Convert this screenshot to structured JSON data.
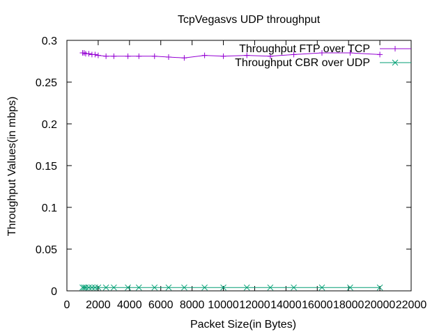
{
  "chart_data": {
    "type": "line",
    "title": "TcpVegasvs UDP throughput",
    "xlabel": "Packet Size(in Bytes)",
    "ylabel": "Throughput Values(in mbps)",
    "xlim": [
      0,
      22000
    ],
    "ylim": [
      0,
      0.3
    ],
    "xticks": [
      0,
      2000,
      4000,
      6000,
      8000,
      10000,
      12000,
      14000,
      16000,
      18000,
      20000,
      22000
    ],
    "yticks": [
      0,
      0.05,
      0.1,
      0.15,
      0.2,
      0.25,
      0.3
    ],
    "xtick_labels": [
      "0",
      "2000",
      "4000",
      "6000",
      "8000",
      "10000",
      "12000",
      "14000",
      "16000",
      "18000",
      "20000",
      "22000"
    ],
    "ytick_labels": [
      "0",
      "0.05",
      "0.1",
      "0.15",
      "0.2",
      "0.25",
      "0.3"
    ],
    "grid": false,
    "legend_position": "top-right",
    "series": [
      {
        "name": "Throughput FTP over TCP",
        "color": "#9400d3",
        "marker": "plus",
        "x": [
          1000,
          1100,
          1200,
          1400,
          1600,
          1800,
          2000,
          2500,
          3000,
          3900,
          4600,
          5600,
          6500,
          7500,
          8800,
          10000,
          11500,
          13000,
          14500,
          16300,
          18100,
          20000
        ],
        "y": [
          0.285,
          0.285,
          0.284,
          0.284,
          0.283,
          0.283,
          0.282,
          0.281,
          0.281,
          0.281,
          0.281,
          0.281,
          0.28,
          0.279,
          0.282,
          0.281,
          0.282,
          0.281,
          0.283,
          0.285,
          0.285,
          0.283
        ]
      },
      {
        "name": "Throughput CBR over UDP",
        "color": "#009e73",
        "marker": "cross",
        "x": [
          1000,
          1100,
          1200,
          1400,
          1600,
          1800,
          2000,
          2500,
          3000,
          3900,
          4600,
          5600,
          6500,
          7500,
          8800,
          10000,
          11500,
          13000,
          14500,
          16300,
          18100,
          20000
        ],
        "y": [
          0.004,
          0.004,
          0.004,
          0.004,
          0.004,
          0.004,
          0.004,
          0.004,
          0.004,
          0.004,
          0.004,
          0.004,
          0.004,
          0.004,
          0.004,
          0.004,
          0.004,
          0.004,
          0.004,
          0.004,
          0.004,
          0.004
        ]
      }
    ]
  }
}
